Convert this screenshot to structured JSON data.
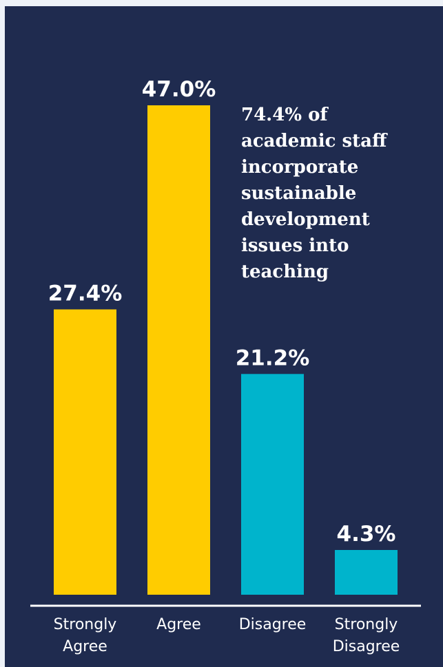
{
  "chart_data": {
    "type": "bar",
    "categories": [
      "Strongly\nAgree",
      "Agree",
      "Disagree",
      "Strongly\nDisagree"
    ],
    "values": [
      27.4,
      47.0,
      21.2,
      4.3
    ],
    "value_labels": [
      "27.4%",
      "47.0%",
      "21.2%",
      "4.3%"
    ],
    "title": "",
    "xlabel": "",
    "ylabel": "",
    "ylim": [
      0,
      47.0
    ],
    "annotation": "74.4% of\nacademic staff\nincorporate\nsustainable\ndevelopment\nissues into\nteaching",
    "bar_colors": [
      "#ffcc00",
      "#ffcc00",
      "#00b4cc",
      "#00b4cc"
    ],
    "grid": false,
    "legend": "none"
  },
  "colors": {
    "background": "#1f2b4f",
    "agree": "#ffcc00",
    "disagree": "#00b4cc",
    "text": "#ffffff"
  }
}
